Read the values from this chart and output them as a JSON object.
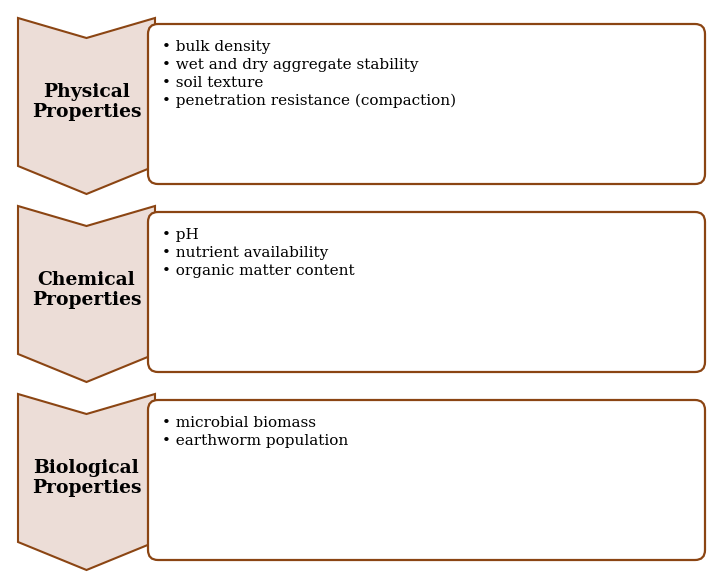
{
  "background_color": "#ffffff",
  "arrow_fill_color": "#ecddd7",
  "arrow_edge_color": "#8B4513",
  "box_fill_color": "#ffffff",
  "box_edge_color": "#8B4513",
  "box_edge_width": 1.6,
  "rows": [
    {
      "label": "Physical\nProperties",
      "bullets": [
        "bulk density",
        "wet and dry aggregate stability",
        "soil texture",
        "penetration resistance (compaction)"
      ]
    },
    {
      "label": "Chemical\nProperties",
      "bullets": [
        "pH",
        "nutrient availability",
        "organic matter content"
      ]
    },
    {
      "label": "Biological\nProperties",
      "bullets": [
        "microbial biomass",
        "earthworm population"
      ]
    }
  ],
  "label_fontsize": 13.5,
  "bullet_fontsize": 11,
  "label_color": "#000000",
  "bullet_color": "#000000",
  "fig_width": 7.2,
  "fig_height": 5.88,
  "dpi": 100
}
